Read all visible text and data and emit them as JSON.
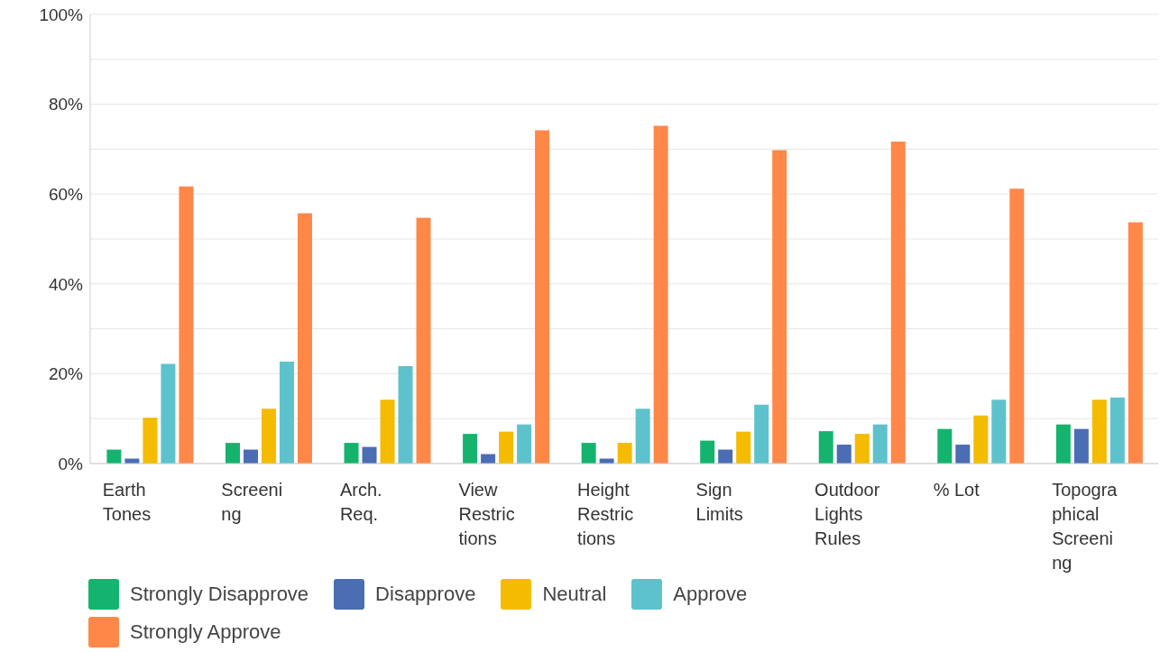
{
  "chart_data": {
    "type": "bar",
    "categories": [
      "Earth Tones",
      "Screening",
      "Arch. Req.",
      "View Restrictions",
      "Height Restrictions",
      "Sign Limits",
      "Outdoor Lights Rules",
      "% Lot",
      "Topographical Screening"
    ],
    "series": [
      {
        "name": "Strongly Disapprove",
        "color": "#14b46e",
        "values": [
          3.1,
          4.6,
          4.6,
          6.6,
          4.6,
          5.1,
          7.2,
          7.7,
          8.7
        ]
      },
      {
        "name": "Disapprove",
        "color": "#4a6db4",
        "values": [
          1.1,
          3.1,
          3.7,
          2.1,
          1.1,
          3.1,
          4.2,
          4.2,
          7.7
        ]
      },
      {
        "name": "Neutral",
        "color": "#f5bb00",
        "values": [
          10.2,
          12.2,
          14.2,
          7.1,
          4.6,
          7.1,
          6.6,
          10.7,
          14.2
        ]
      },
      {
        "name": "Approve",
        "color": "#5ec2cc",
        "values": [
          22.2,
          22.7,
          21.7,
          8.7,
          12.2,
          13.1,
          8.7,
          14.2,
          14.7
        ]
      },
      {
        "name": "Strongly Approve",
        "color": "#ff8849",
        "values": [
          61.7,
          55.7,
          54.7,
          74.2,
          75.2,
          69.8,
          71.7,
          61.2,
          53.7
        ]
      }
    ],
    "ylim": [
      0,
      100
    ],
    "yticks": [
      {
        "value": 0,
        "label": "0%"
      },
      {
        "value": 10,
        "label": null
      },
      {
        "value": 20,
        "label": "20%"
      },
      {
        "value": 30,
        "label": null
      },
      {
        "value": 40,
        "label": "40%"
      },
      {
        "value": 50,
        "label": null
      },
      {
        "value": 60,
        "label": "60%"
      },
      {
        "value": 70,
        "label": null
      },
      {
        "value": 80,
        "label": "80%"
      },
      {
        "value": 90,
        "label": null
      },
      {
        "value": 100,
        "label": "100%"
      }
    ],
    "grid": "y",
    "legend": "bottom"
  }
}
